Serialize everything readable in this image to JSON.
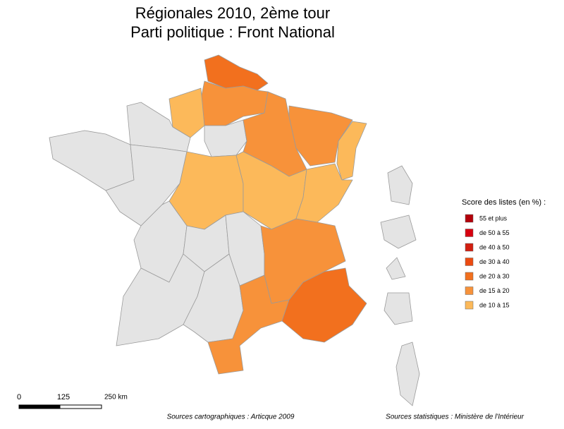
{
  "title": [
    "Régionales 2010, 2ème tour",
    "Parti politique : Front National"
  ],
  "legend": {
    "title": "Score des listes (en %) :",
    "items": [
      {
        "label": "55 et plus",
        "color": "#b3000a"
      },
      {
        "label": "de 50 à 55",
        "color": "#d7000f"
      },
      {
        "label": "de 40 à 50",
        "color": "#d21e10"
      },
      {
        "label": "de 30 à 40",
        "color": "#ec4a10"
      },
      {
        "label": "de 20 à 30",
        "color": "#f2701e"
      },
      {
        "label": "de 15 à 20",
        "color": "#f7923a"
      },
      {
        "label": "de 10 à 15",
        "color": "#fcb95a"
      }
    ]
  },
  "scale": {
    "labels": [
      "0",
      "125",
      "250 km"
    ]
  },
  "sources": [
    "Sources cartographiques : Articque 2009",
    "Sources statistiques : Ministère de l'Intérieur"
  ]
}
